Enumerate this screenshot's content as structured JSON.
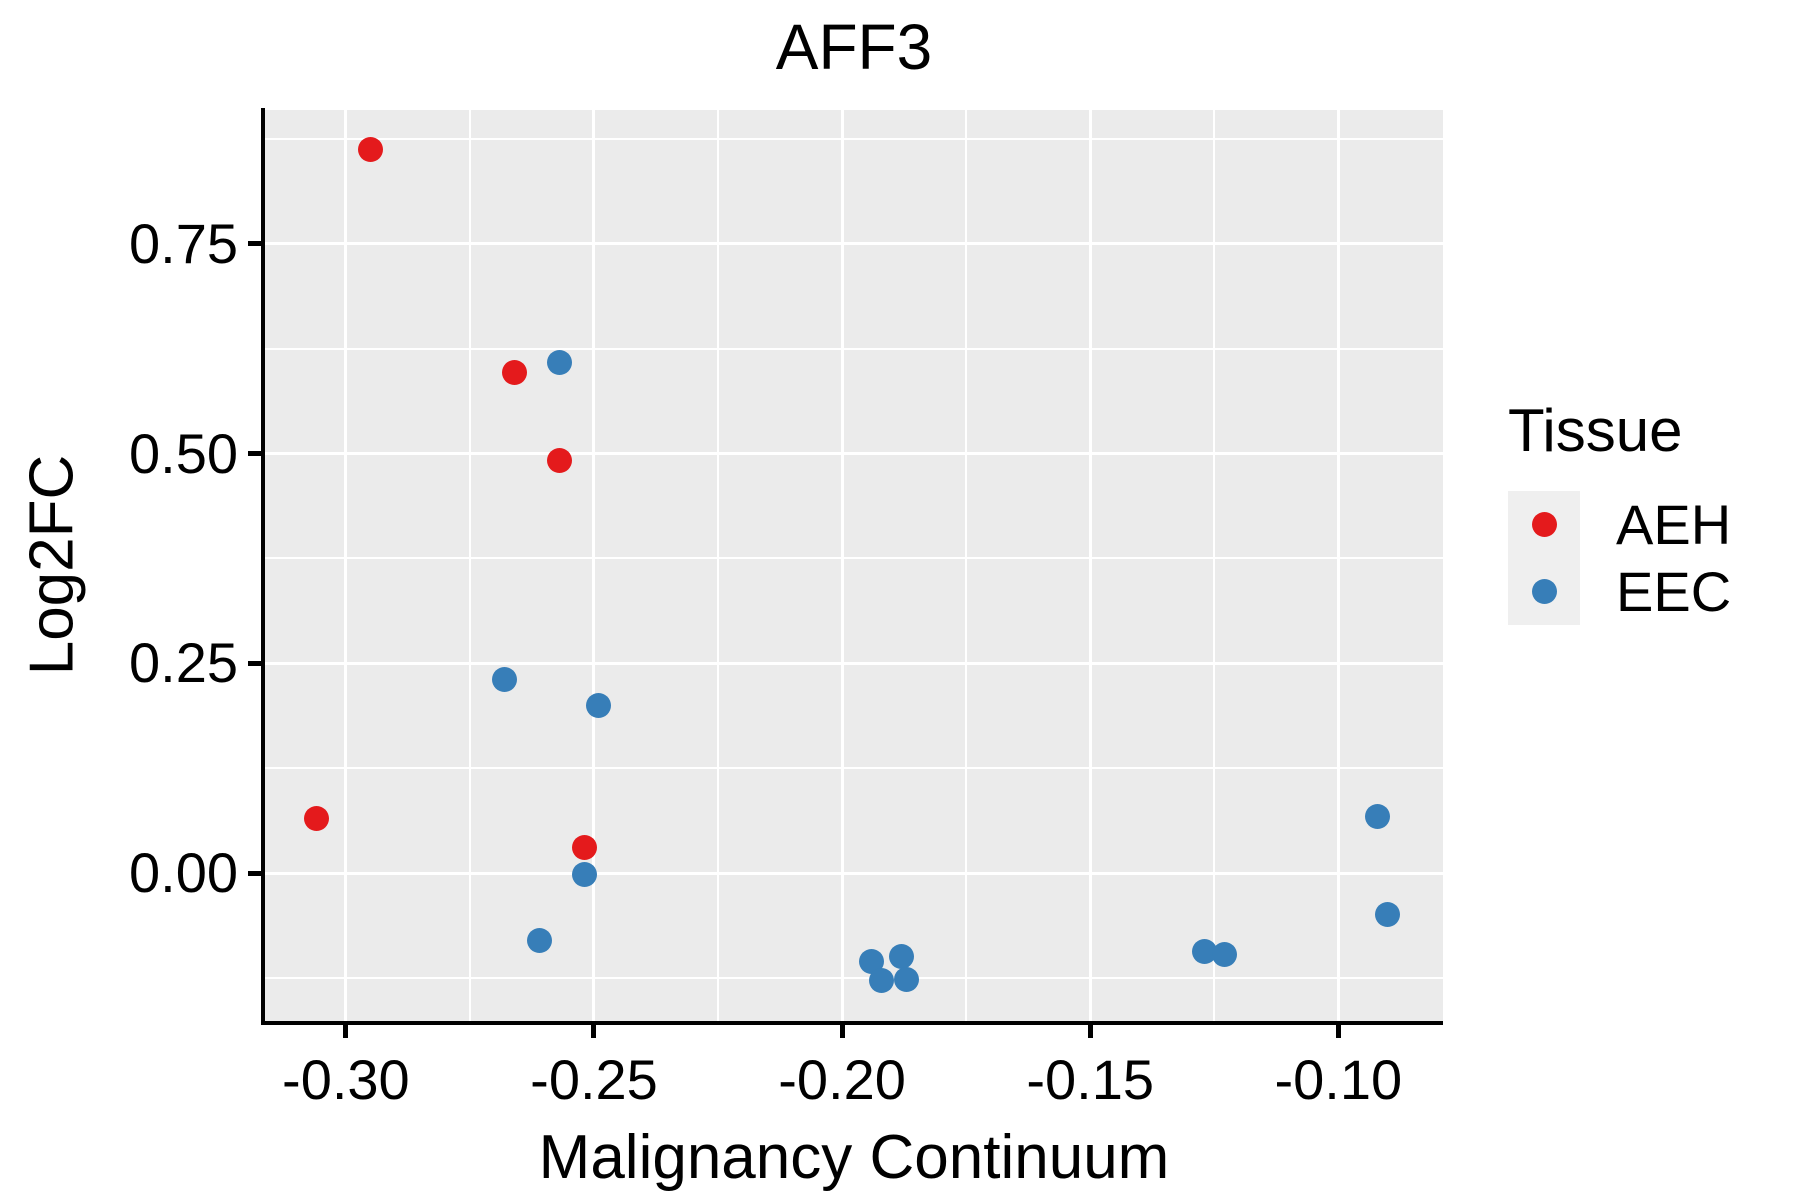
{
  "chart_data": {
    "type": "scatter",
    "title": "AFF3",
    "xlabel": "Malignancy Continuum",
    "ylabel": "Log2FC",
    "xlim": [
      -0.3163,
      -0.0789
    ],
    "ylim": [
      -0.1764,
      0.9096
    ],
    "x_ticks": [
      -0.3,
      -0.25,
      -0.2,
      -0.15,
      -0.1
    ],
    "x_tick_labels": [
      "-0.30",
      "-0.25",
      "-0.20",
      "-0.15",
      "-0.10"
    ],
    "x_minor_ticks": [
      -0.275,
      -0.225,
      -0.175,
      -0.125
    ],
    "y_ticks": [
      0.0,
      0.25,
      0.5,
      0.75
    ],
    "y_tick_labels": [
      "0.00",
      "0.25",
      "0.50",
      "0.75"
    ],
    "y_minor_ticks": [
      -0.125,
      0.125,
      0.375,
      0.625,
      0.875
    ],
    "grid": true,
    "legend_position": "right",
    "series": [
      {
        "name": "AEH",
        "color": "#E41A1C",
        "points": [
          [
            -0.295,
            0.863
          ],
          [
            -0.266,
            0.597
          ],
          [
            -0.257,
            0.492
          ],
          [
            -0.306,
            0.065
          ],
          [
            -0.252,
            0.031
          ]
        ]
      },
      {
        "name": "EEC",
        "color": "#377EB8",
        "points": [
          [
            -0.257,
            0.608
          ],
          [
            -0.268,
            0.231
          ],
          [
            -0.249,
            0.2
          ],
          [
            -0.252,
            -0.002
          ],
          [
            -0.261,
            -0.08
          ],
          [
            -0.194,
            -0.106
          ],
          [
            -0.188,
            -0.1
          ],
          [
            -0.192,
            -0.128
          ],
          [
            -0.187,
            -0.127
          ],
          [
            -0.127,
            -0.093
          ],
          [
            -0.123,
            -0.097
          ],
          [
            -0.092,
            0.067
          ],
          [
            -0.09,
            -0.05
          ]
        ]
      }
    ]
  },
  "legend": {
    "title": "Tissue",
    "items": [
      {
        "label": "AEH",
        "color": "#E41A1C"
      },
      {
        "label": "EEC",
        "color": "#377EB8"
      }
    ]
  },
  "colors": {
    "panel_bg": "#EBEBEB",
    "grid": "#FFFFFF",
    "axis": "#000000",
    "text": "#000000",
    "legend_key_bg": "#EFEFEF"
  }
}
